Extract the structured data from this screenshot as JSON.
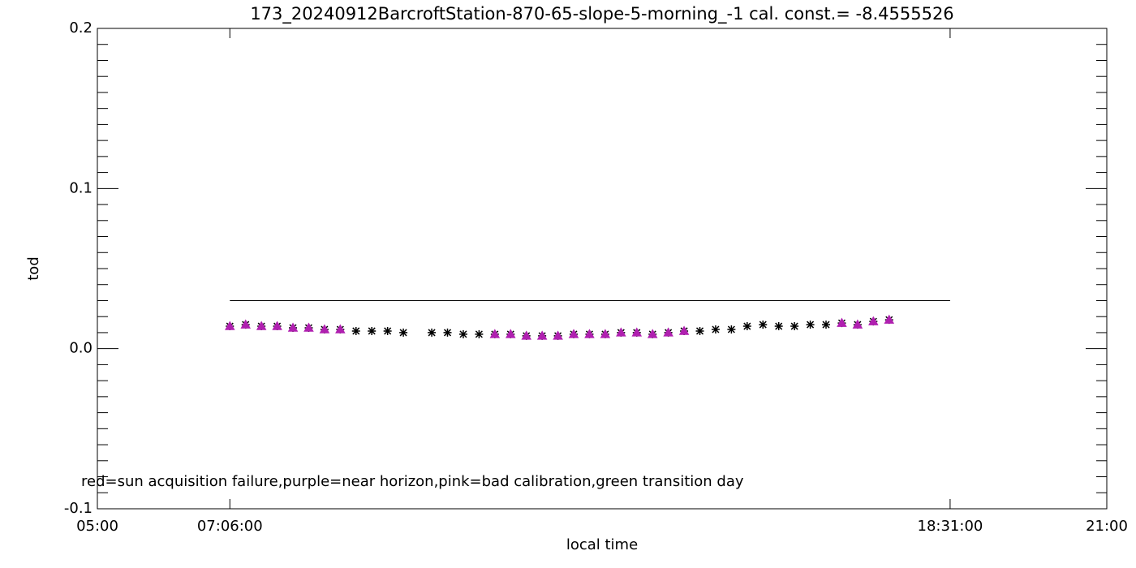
{
  "chart_data": {
    "type": "scatter",
    "title": "173_20240912BarcroftStation-870-65-slope-5-morning_-1 cal. const.= -8.4555526",
    "xlabel": "local time",
    "ylabel": "tod",
    "annotation": "red=sun acquisition failure,purple=near horizon,pink=bad calibration,green transition day",
    "xlim": [
      5,
      21
    ],
    "xticks": [
      {
        "value": 5,
        "label": "05:00"
      },
      {
        "value": 7.1,
        "label": "07:06:00"
      },
      {
        "value": 18.5167,
        "label": "18:31:00"
      },
      {
        "value": 21,
        "label": "21:00"
      }
    ],
    "ylim": [
      -0.1,
      0.2
    ],
    "yticks": [
      -0.1,
      {
        "value": 0,
        "label": "0.0"
      },
      0.1,
      0.2
    ],
    "yminor": 5,
    "reference_line": {
      "color": "#000000",
      "x": [
        7.1,
        18.5167
      ],
      "y": [
        0.03,
        0.03
      ]
    },
    "series": [
      {
        "color": "#000000",
        "marker": "star",
        "x": [
          7.1,
          7.35,
          7.6,
          7.85,
          8.1,
          8.35,
          8.6,
          8.85,
          9.1,
          9.35,
          9.6,
          9.85,
          10.3,
          10.55,
          10.8,
          11.05,
          11.3,
          11.55,
          11.8,
          12.05,
          12.3,
          12.55,
          12.8,
          13.05,
          13.3,
          13.55,
          13.8,
          14.05,
          14.3,
          14.55,
          14.8,
          15.05,
          15.3,
          15.55,
          15.8,
          16.05,
          16.3,
          16.55,
          16.8,
          17.05,
          17.3,
          17.55
        ],
        "values": [
          0.014,
          0.015,
          0.014,
          0.014,
          0.013,
          0.013,
          0.012,
          0.012,
          0.011,
          0.011,
          0.011,
          0.01,
          0.01,
          0.01,
          0.009,
          0.009,
          0.009,
          0.009,
          0.008,
          0.008,
          0.008,
          0.009,
          0.009,
          0.009,
          0.01,
          0.01,
          0.009,
          0.01,
          0.011,
          0.011,
          0.012,
          0.012,
          0.014,
          0.015,
          0.014,
          0.014,
          0.015,
          0.015,
          0.016,
          0.015,
          0.017,
          0.018
        ]
      },
      {
        "color": "#b020b0",
        "marker": "triangle",
        "x": [
          7.1,
          7.35,
          7.6,
          7.85,
          8.1,
          8.35,
          8.6,
          8.85,
          11.3,
          11.55,
          11.8,
          12.05,
          12.3,
          12.55,
          12.8,
          13.05,
          13.3,
          13.55,
          13.8,
          14.05,
          14.3,
          16.8,
          17.05,
          17.3,
          17.55
        ],
        "values": [
          0.014,
          0.015,
          0.014,
          0.014,
          0.013,
          0.013,
          0.012,
          0.012,
          0.009,
          0.009,
          0.008,
          0.008,
          0.008,
          0.009,
          0.009,
          0.009,
          0.01,
          0.01,
          0.009,
          0.01,
          0.011,
          0.016,
          0.015,
          0.017,
          0.018
        ]
      }
    ]
  }
}
